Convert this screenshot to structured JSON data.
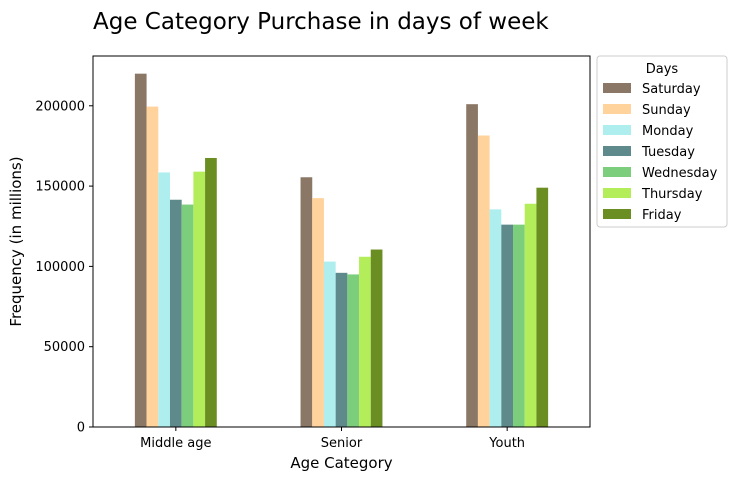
{
  "chart_data": {
    "type": "bar",
    "title": "Age Category Purchase in days of week",
    "xlabel": "Age Category",
    "ylabel": "Frequency (in millions)",
    "categories": [
      "Middle age",
      "Senior",
      "Youth"
    ],
    "ylim": [
      0,
      231000
    ],
    "yticks": [
      0,
      50000,
      100000,
      150000,
      200000
    ],
    "legend": {
      "title": "Days",
      "placement": "outside-top-right"
    },
    "grid": false,
    "series": [
      {
        "name": "Saturday",
        "color": "#8b7765",
        "values": [
          220000,
          155500,
          201000
        ]
      },
      {
        "name": "Sunday",
        "color": "#ffd39b",
        "values": [
          199500,
          142500,
          181500
        ]
      },
      {
        "name": "Monday",
        "color": "#aeeeee",
        "values": [
          158500,
          103000,
          135500
        ]
      },
      {
        "name": "Tuesday",
        "color": "#5f8a8b",
        "values": [
          141500,
          96000,
          126000
        ]
      },
      {
        "name": "Wednesday",
        "color": "#7ccd7c",
        "values": [
          138500,
          95000,
          126000
        ]
      },
      {
        "name": "Thursday",
        "color": "#b3ee5a",
        "values": [
          159000,
          106000,
          139000
        ]
      },
      {
        "name": "Friday",
        "color": "#6b8e23",
        "values": [
          167500,
          110500,
          149000
        ]
      }
    ]
  }
}
